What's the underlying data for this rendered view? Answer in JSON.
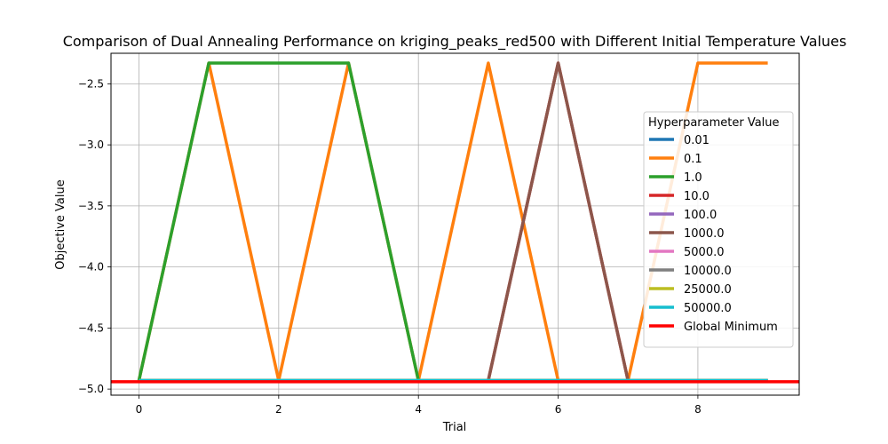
{
  "chart_data": {
    "type": "line",
    "title": "Comparison of Dual Annealing Performance on kriging_peaks_red500 with Different Initial Temperature Values",
    "xlabel": "Trial",
    "ylabel": "Objective Value",
    "xlim": [
      -0.4,
      9.45
    ],
    "ylim": [
      -5.05,
      -2.25
    ],
    "xticks": [
      0,
      2,
      4,
      6,
      8
    ],
    "xtick_labels": [
      "0",
      "2",
      "4",
      "6",
      "8"
    ],
    "yticks": [
      -5.0,
      -4.5,
      -4.0,
      -3.5,
      -3.0,
      -2.5
    ],
    "ytick_labels": [
      "−5.0",
      "−4.5",
      "−4.0",
      "−3.5",
      "−3.0",
      "−2.5"
    ],
    "grid": true,
    "legend_title": "Hyperparameter Value",
    "legend_position": "center-right",
    "x": [
      0,
      1,
      2,
      3,
      4,
      5,
      6,
      7,
      8,
      9
    ],
    "series": [
      {
        "name": "0.01",
        "color": "#1f77b4",
        "values": [
          -4.93,
          -4.93,
          -4.93,
          -4.93,
          -4.93,
          -4.93,
          -4.93,
          -4.93,
          -4.93,
          -4.93
        ]
      },
      {
        "name": "0.1",
        "color": "#ff7f0e",
        "values": [
          -4.93,
          -2.33,
          -4.93,
          -2.33,
          -4.93,
          -2.33,
          -4.93,
          -4.93,
          -2.33,
          -2.33
        ]
      },
      {
        "name": "1.0",
        "color": "#2ca02c",
        "values": [
          -4.93,
          -2.33,
          -2.33,
          -2.33,
          -4.93,
          -4.93,
          -4.93,
          -4.93,
          -4.93,
          -4.93
        ]
      },
      {
        "name": "10.0",
        "color": "#d62728",
        "values": [
          -4.93,
          -4.93,
          -4.93,
          -4.93,
          -4.93,
          -4.93,
          -2.33,
          -4.93,
          -4.93,
          -4.93
        ]
      },
      {
        "name": "100.0",
        "color": "#9467bd",
        "values": [
          -4.93,
          -4.93,
          -4.93,
          -4.93,
          -4.93,
          -4.93,
          -4.93,
          -4.93,
          -4.93,
          -4.93
        ]
      },
      {
        "name": "1000.0",
        "color": "#8c564b",
        "values": [
          -4.93,
          -4.93,
          -4.93,
          -4.93,
          -4.93,
          -4.93,
          -2.33,
          -4.93,
          -4.93,
          -4.93
        ]
      },
      {
        "name": "5000.0",
        "color": "#e377c2",
        "values": [
          -4.93,
          -4.93,
          -4.93,
          -4.93,
          -4.93,
          -4.93,
          -4.93,
          -4.93,
          -4.93,
          -4.93
        ]
      },
      {
        "name": "10000.0",
        "color": "#7f7f7f",
        "values": [
          -4.93,
          -4.93,
          -4.93,
          -4.93,
          -4.93,
          -4.93,
          -4.93,
          -4.93,
          -4.93,
          -4.93
        ]
      },
      {
        "name": "25000.0",
        "color": "#bcbd22",
        "values": [
          -4.93,
          -4.93,
          -4.93,
          -4.93,
          -4.93,
          -4.93,
          -4.93,
          -4.93,
          -4.93,
          -4.93
        ]
      },
      {
        "name": "50000.0",
        "color": "#17becf",
        "values": [
          -4.93,
          -4.93,
          -4.93,
          -4.93,
          -4.93,
          -4.93,
          -4.93,
          -4.93,
          -4.93,
          -4.93
        ]
      }
    ],
    "reference_line": {
      "name": "Global Minimum",
      "value": -4.94,
      "color": "#ff0000"
    }
  }
}
